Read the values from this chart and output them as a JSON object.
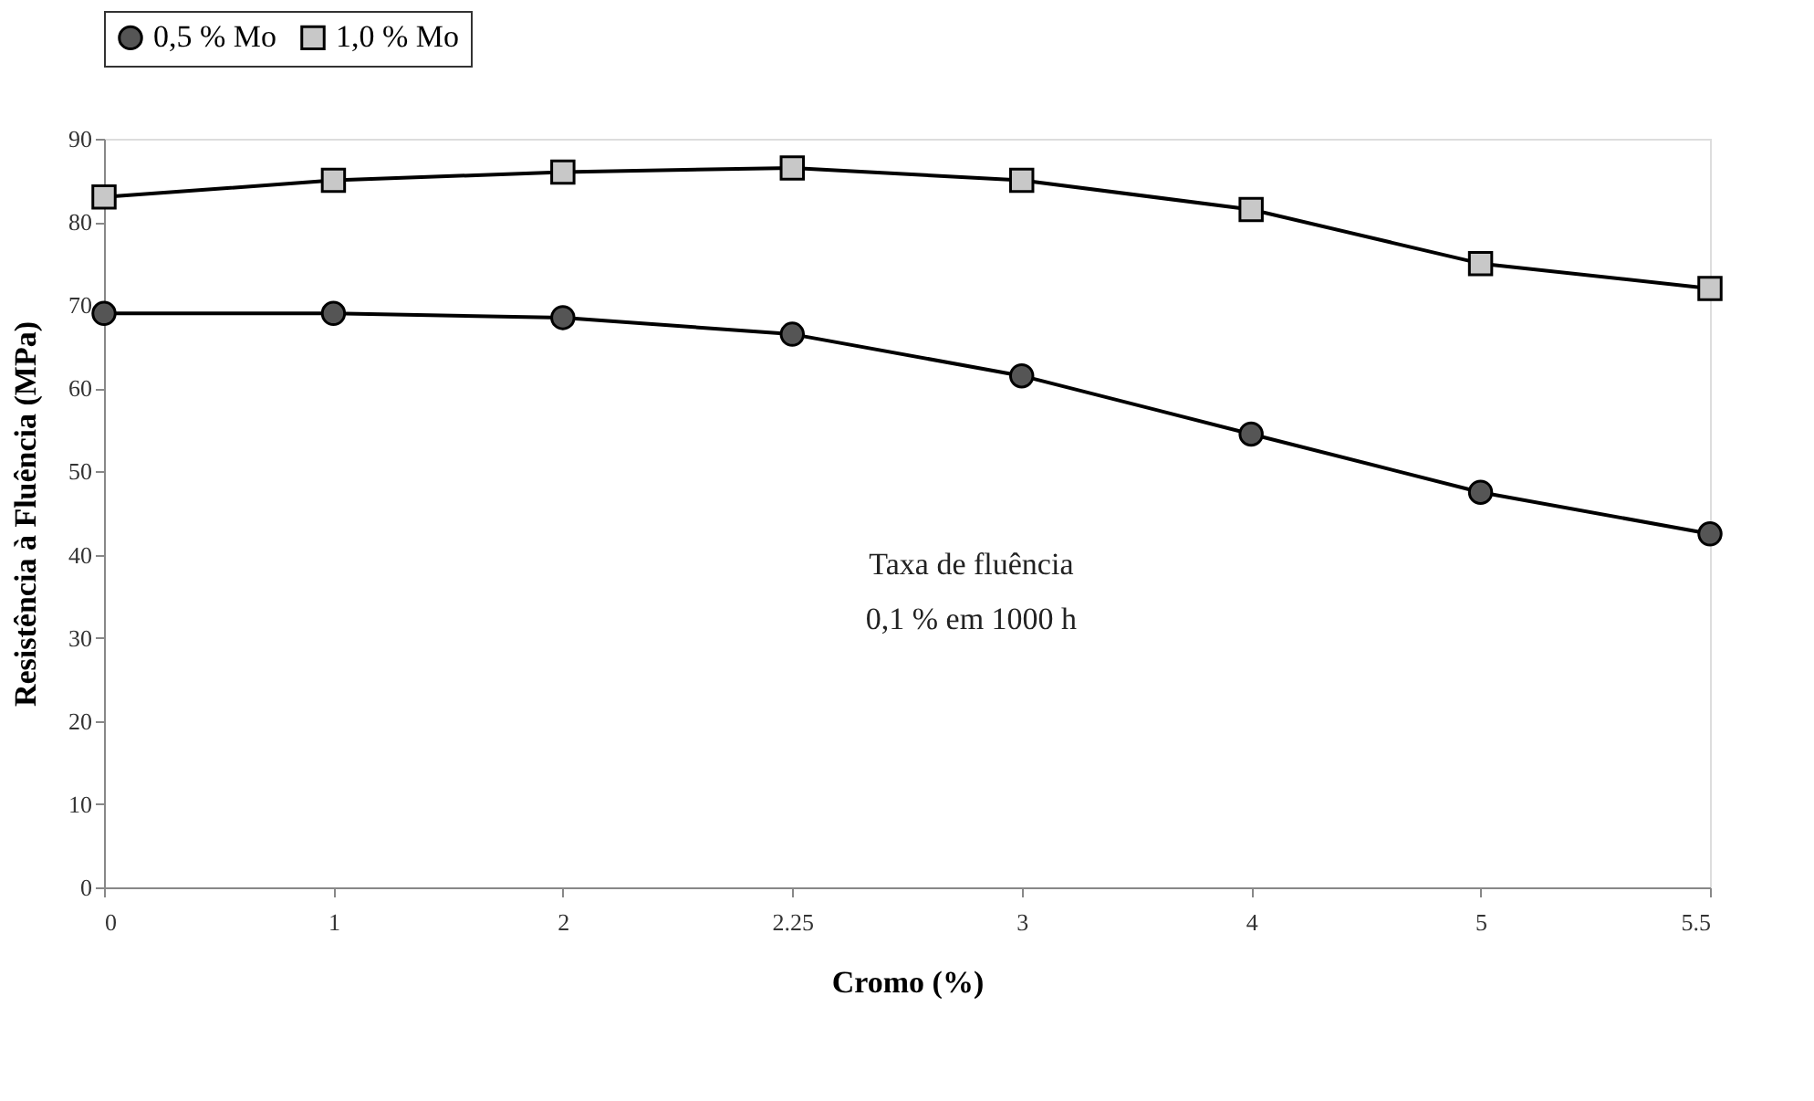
{
  "chart_data": {
    "type": "line",
    "xlabel": "Cromo (%)",
    "ylabel": "Resistência à Fluência (MPa)",
    "categories": [
      "0",
      "1",
      "2",
      "2.25",
      "3",
      "4",
      "5",
      "5.5"
    ],
    "series": [
      {
        "name": "0,5 % Mo",
        "color": "#555555",
        "marker": "circle",
        "values": [
          69,
          69,
          68.5,
          66.5,
          61.5,
          54.5,
          47.5,
          42.5
        ]
      },
      {
        "name": "1,0 % Mo",
        "color": "#c8c8c8",
        "marker": "square",
        "values": [
          83,
          85,
          86,
          86.5,
          85,
          81.5,
          75,
          72
        ]
      }
    ],
    "ylim": [
      0,
      90
    ],
    "yticks": [
      0,
      10,
      20,
      30,
      40,
      50,
      60,
      70,
      80,
      90
    ],
    "grid": false,
    "legend": "top",
    "line_style": "solid",
    "annotations": [
      "Taxa de fluência",
      "0,1 % em 1000 h"
    ]
  }
}
